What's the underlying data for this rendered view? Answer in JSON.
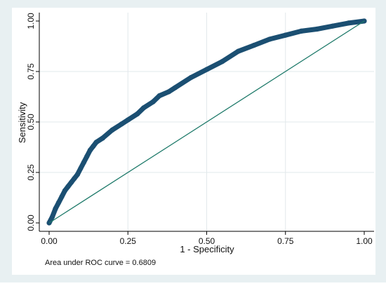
{
  "chart_data": {
    "type": "line",
    "title": "",
    "xlabel": "1 - Specificity",
    "ylabel": "Sensitivity",
    "xlim": [
      0,
      1
    ],
    "ylim": [
      0,
      1
    ],
    "x_ticks": [
      "0.00",
      "0.25",
      "0.50",
      "0.75",
      "1.00"
    ],
    "y_ticks": [
      "0.00",
      "0.25",
      "0.50",
      "0.75",
      "1.00"
    ],
    "grid": true,
    "note": "Area under ROC curve = 0.6809",
    "series": [
      {
        "role": "roc-curve",
        "color": "#1b4f72",
        "x": [
          0,
          0.01,
          0.02,
          0.03,
          0.04,
          0.05,
          0.06,
          0.07,
          0.08,
          0.09,
          0.1,
          0.11,
          0.12,
          0.13,
          0.14,
          0.15,
          0.17,
          0.2,
          0.23,
          0.25,
          0.28,
          0.3,
          0.33,
          0.35,
          0.38,
          0.4,
          0.45,
          0.5,
          0.55,
          0.6,
          0.65,
          0.7,
          0.75,
          0.8,
          0.85,
          0.9,
          0.95,
          1.0
        ],
        "y": [
          0,
          0.03,
          0.07,
          0.1,
          0.13,
          0.16,
          0.18,
          0.2,
          0.22,
          0.24,
          0.27,
          0.3,
          0.33,
          0.36,
          0.38,
          0.4,
          0.42,
          0.46,
          0.49,
          0.51,
          0.54,
          0.57,
          0.6,
          0.63,
          0.65,
          0.67,
          0.72,
          0.76,
          0.8,
          0.85,
          0.88,
          0.91,
          0.93,
          0.95,
          0.96,
          0.975,
          0.99,
          1.0
        ]
      },
      {
        "role": "reference-line",
        "color": "#1e7a6a",
        "x": [
          0,
          1
        ],
        "y": [
          0,
          1
        ]
      }
    ]
  }
}
